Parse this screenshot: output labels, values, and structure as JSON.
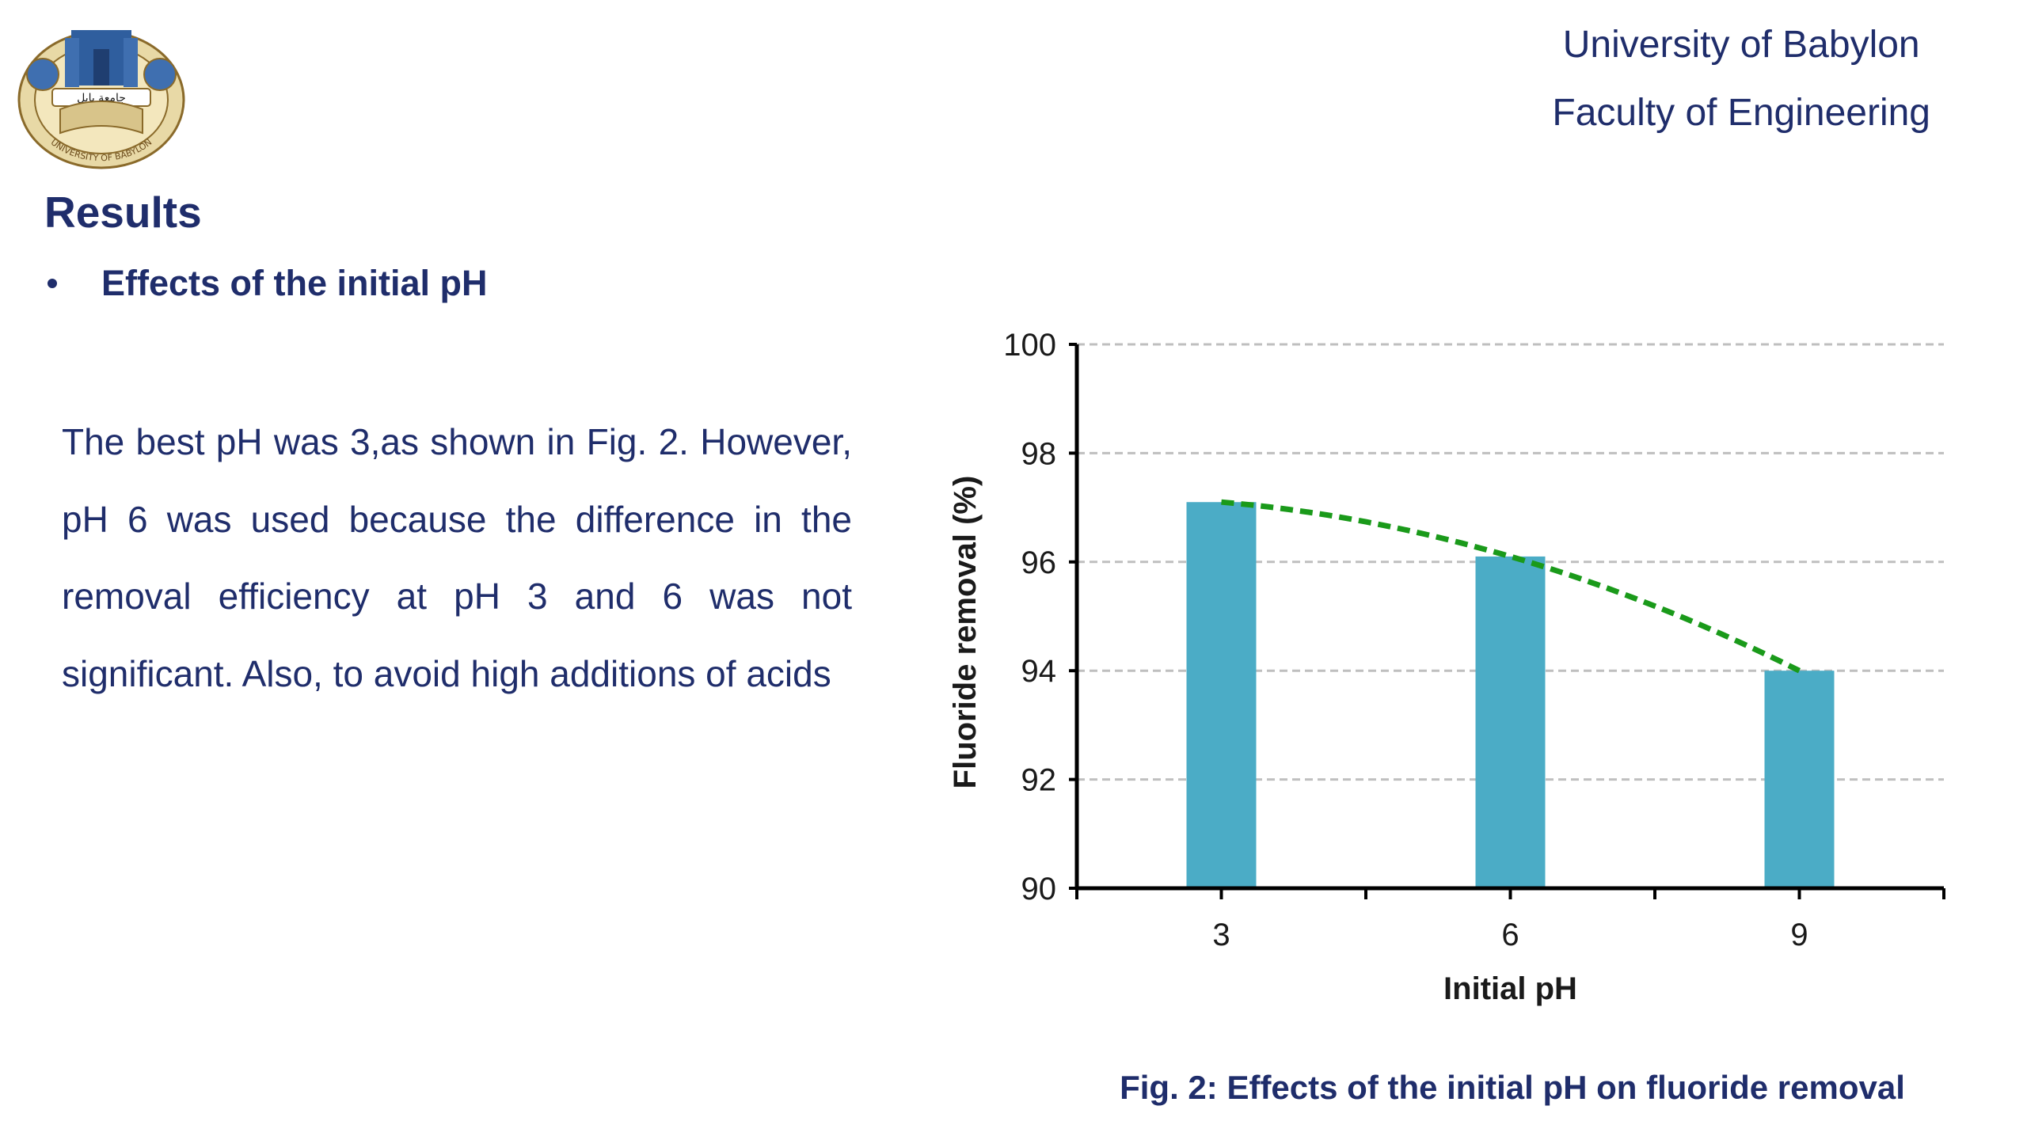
{
  "header": {
    "university": "University of Babylon",
    "faculty": "Faculty of Engineering"
  },
  "logo": {
    "top_text": "جامعة بابل",
    "bottom_text": "UNIVERSITY OF BABYLON"
  },
  "section": {
    "title": "Results",
    "bullet": "Effects of the initial pH"
  },
  "paragraph": "The best pH was 3,as shown in Fig. 2. However, pH 6 was used because the difference in the removal efficiency at pH 3 and 6 was not significant. Also, to avoid high additions of acids",
  "colors": {
    "text": "#1f2d6b",
    "bar": "#4bacc6",
    "trendline": "#1a9a1a",
    "grid": "#bfbfbf"
  },
  "chart_data": {
    "type": "bar",
    "categories": [
      "3",
      "6",
      "9"
    ],
    "values": [
      97.1,
      96.1,
      94.0
    ],
    "trendline": "polynomial",
    "xlabel": "Initial pH",
    "ylabel": "Fluoride removal (%)",
    "ylim": [
      90,
      100
    ],
    "yticks": [
      90,
      92,
      94,
      96,
      98,
      100
    ],
    "grid": "horizontal-dashed"
  },
  "caption": "Fig. 2: Effects of the initial pH on fluoride removal"
}
